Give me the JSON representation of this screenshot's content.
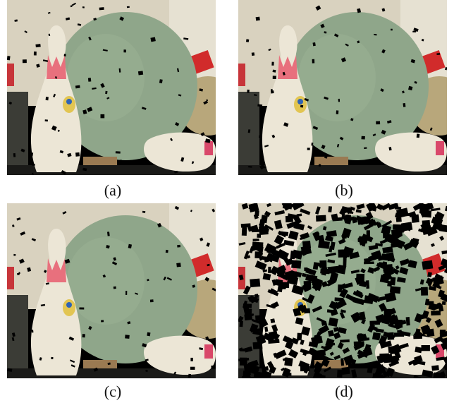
{
  "figure": {
    "panels": [
      {
        "id": "a",
        "caption": "(a)",
        "style": "full"
      },
      {
        "id": "b",
        "caption": "(b)",
        "style": "full"
      },
      {
        "id": "c",
        "caption": "(c)",
        "style": "full"
      },
      {
        "id": "d",
        "caption": "(d)",
        "style": "sparse"
      }
    ]
  },
  "colors": {
    "background": "#ffffff",
    "ball": "#8fa68a",
    "ball_shadow": "#6f8770",
    "pin": "#ece6d6",
    "pin_stripe": "#e8707d",
    "wall": "#d9d2bf",
    "base": "#9a7a52",
    "hole": "#000000"
  }
}
